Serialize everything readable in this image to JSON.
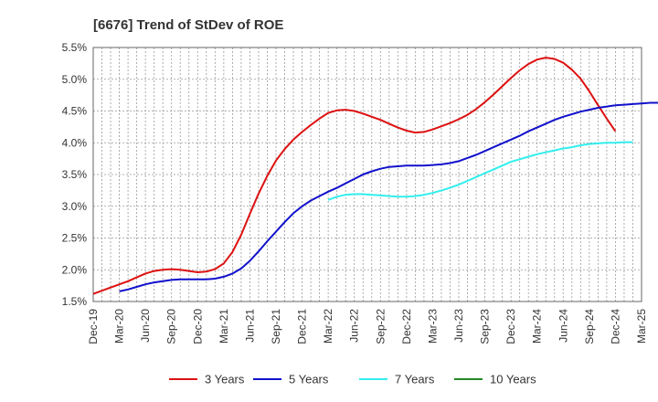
{
  "chart_data": {
    "type": "line",
    "title": "[6676]  Trend of StDev of ROE",
    "xlabel": "",
    "ylabel": "",
    "x_ticks": [
      "Dec-19",
      "Mar-20",
      "Jun-20",
      "Sep-20",
      "Dec-20",
      "Mar-21",
      "Jun-21",
      "Sep-21",
      "Dec-21",
      "Mar-22",
      "Jun-22",
      "Sep-22",
      "Dec-22",
      "Mar-23",
      "Jun-23",
      "Sep-23",
      "Dec-23",
      "Mar-24",
      "Jun-24",
      "Sep-24",
      "Dec-24",
      "Mar-25"
    ],
    "y_ticks": [
      "1.5%",
      "2.0%",
      "2.5%",
      "3.0%",
      "3.5%",
      "4.0%",
      "4.5%",
      "5.0%",
      "5.5%"
    ],
    "ylim": [
      1.5,
      5.5
    ],
    "grid": true,
    "legend_position": "bottom",
    "series": [
      {
        "name": "3 Years",
        "color": "#dd1111",
        "points": [
          [
            "Dec-19",
            1.62
          ],
          [
            "Jan-20",
            1.67
          ],
          [
            "Feb-20",
            1.72
          ],
          [
            "Mar-20",
            1.77
          ],
          [
            "Apr-20",
            1.82
          ],
          [
            "May-20",
            1.88
          ],
          [
            "Jun-20",
            1.94
          ],
          [
            "Jul-20",
            1.98
          ],
          [
            "Aug-20",
            2.0
          ],
          [
            "Sep-20",
            2.01
          ],
          [
            "Oct-20",
            2.0
          ],
          [
            "Nov-20",
            1.98
          ],
          [
            "Dec-20",
            1.96
          ],
          [
            "Jan-21",
            1.97
          ],
          [
            "Feb-21",
            2.01
          ],
          [
            "Mar-21",
            2.1
          ],
          [
            "Apr-21",
            2.28
          ],
          [
            "May-21",
            2.55
          ],
          [
            "Jun-21",
            2.88
          ],
          [
            "Jul-21",
            3.2
          ],
          [
            "Aug-21",
            3.48
          ],
          [
            "Sep-21",
            3.72
          ],
          [
            "Oct-21",
            3.9
          ],
          [
            "Nov-21",
            4.05
          ],
          [
            "Dec-21",
            4.17
          ],
          [
            "Jan-22",
            4.28
          ],
          [
            "Feb-22",
            4.38
          ],
          [
            "Mar-22",
            4.47
          ],
          [
            "Apr-22",
            4.51
          ],
          [
            "May-22",
            4.52
          ],
          [
            "Jun-22",
            4.5
          ],
          [
            "Jul-22",
            4.46
          ],
          [
            "Aug-22",
            4.41
          ],
          [
            "Sep-22",
            4.36
          ],
          [
            "Oct-22",
            4.3
          ],
          [
            "Nov-22",
            4.24
          ],
          [
            "Dec-22",
            4.19
          ],
          [
            "Jan-23",
            4.16
          ],
          [
            "Feb-23",
            4.17
          ],
          [
            "Mar-23",
            4.21
          ],
          [
            "Apr-23",
            4.26
          ],
          [
            "May-23",
            4.31
          ],
          [
            "Jun-23",
            4.37
          ],
          [
            "Jul-23",
            4.44
          ],
          [
            "Aug-23",
            4.53
          ],
          [
            "Sep-23",
            4.64
          ],
          [
            "Oct-23",
            4.76
          ],
          [
            "Nov-23",
            4.89
          ],
          [
            "Dec-23",
            5.02
          ],
          [
            "Jan-24",
            5.14
          ],
          [
            "Feb-24",
            5.24
          ],
          [
            "Mar-24",
            5.31
          ],
          [
            "Apr-24",
            5.34
          ],
          [
            "May-24",
            5.32
          ],
          [
            "Jun-24",
            5.26
          ],
          [
            "Jul-24",
            5.15
          ],
          [
            "Aug-24",
            5.01
          ],
          [
            "Sep-24",
            4.81
          ],
          [
            "Oct-24",
            4.59
          ],
          [
            "Nov-24",
            4.38
          ],
          [
            "Dec-24",
            4.18
          ]
        ]
      },
      {
        "name": "5 Years",
        "color": "#1111cc",
        "points": [
          [
            "Dec-20",
            1.84
          ]
        ]
      },
      {
        "name": "7 Years",
        "color": "#33eeee",
        "points": []
      },
      {
        "name": "10 Years",
        "color": "#228822",
        "points": []
      }
    ]
  }
}
